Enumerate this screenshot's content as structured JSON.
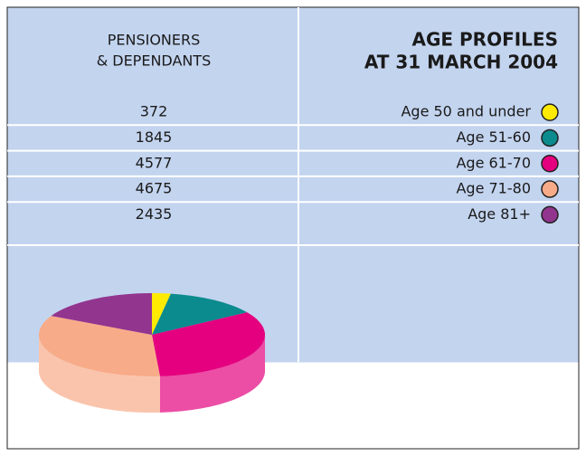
{
  "chart_data": {
    "type": "pie",
    "title": [
      "AGE PROFILES",
      "AT 31 MARCH 2004"
    ],
    "value_header": [
      "PENSIONERS",
      "& DEPENDANTS"
    ],
    "categories": [
      "Age 50 and under",
      "Age 51-60",
      "Age 61-70",
      "Age 71-80",
      "Age 81+"
    ],
    "values": [
      372,
      1845,
      4577,
      4675,
      2435
    ],
    "colors": [
      "#ffeb00",
      "#0b8b8e",
      "#e4007f",
      "#f8ab88",
      "#92358f"
    ]
  }
}
